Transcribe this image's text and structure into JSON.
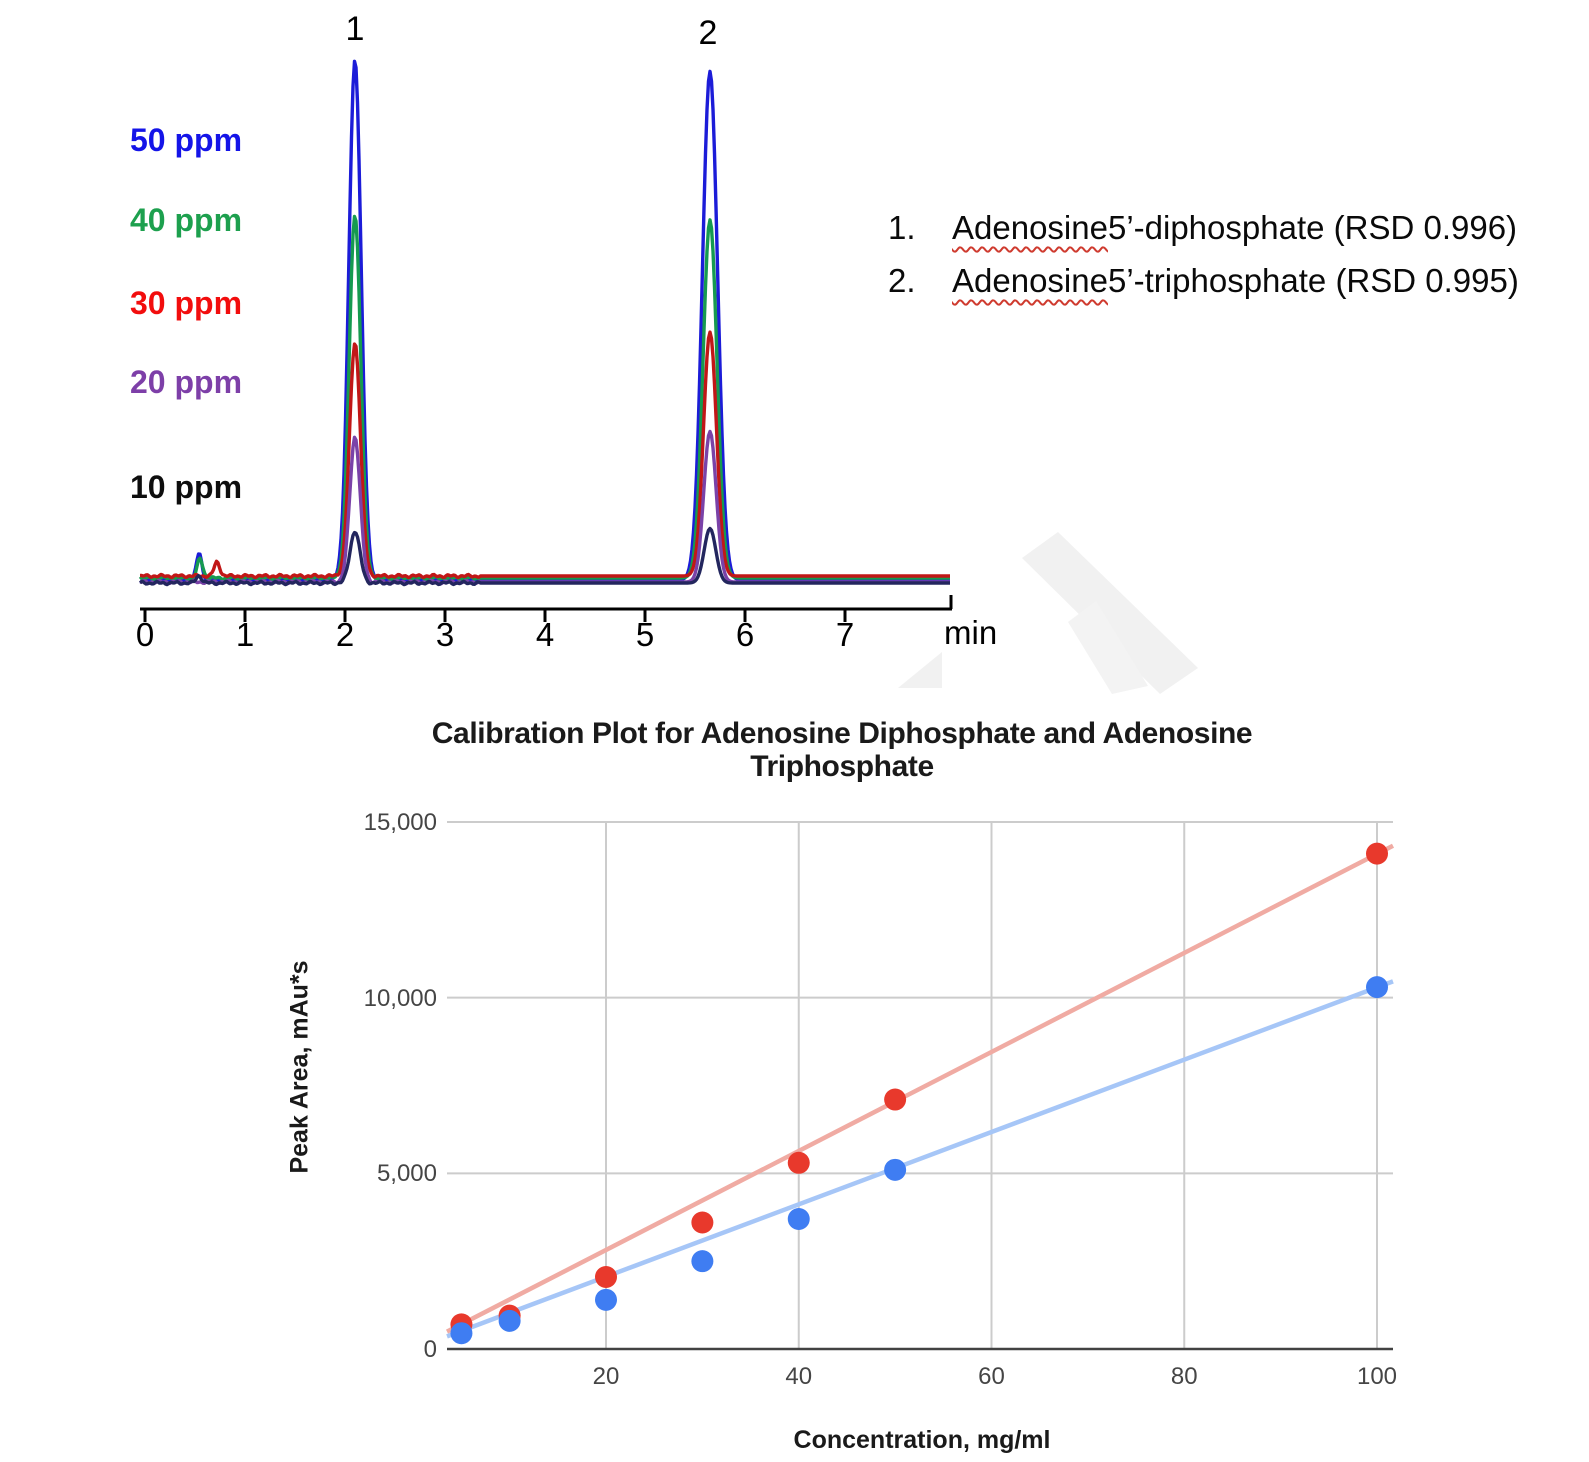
{
  "chromatogram": {
    "concentration_labels": [
      {
        "label": "50 ppm",
        "color": "#1414e8"
      },
      {
        "label": "40 ppm",
        "color": "#1da04e"
      },
      {
        "label": "30 ppm",
        "color": "#f20d0d"
      },
      {
        "label": "20 ppm",
        "color": "#7d3fa8"
      },
      {
        "label": "10 ppm",
        "color": "#0d0d0d"
      }
    ],
    "peak_markers": [
      "1",
      "2"
    ],
    "x_tick_labels": [
      "0",
      "1",
      "2",
      "3",
      "4",
      "5",
      "6",
      "7"
    ],
    "x_unit": "min",
    "legend_items": [
      {
        "number": "1.",
        "word": "Adenosine",
        "rest": " 5’-diphosphate (RSD 0.996)"
      },
      {
        "number": "2.",
        "word": "Adenosine",
        "rest": " 5’-triphosphate (RSD 0.995)"
      }
    ]
  },
  "calibration": {
    "title_lines": [
      "Calibration Plot for Adenosine Diphosphate and Adenosine",
      "Triphosphate"
    ],
    "ylabel": "Peak Area, mAu*s",
    "xlabel": "Concentration, mg/ml",
    "y_tick_labels": [
      {
        "value": 0,
        "label": "0"
      },
      {
        "value": 5000,
        "label": "5,000"
      },
      {
        "value": 10000,
        "label": "10,000"
      },
      {
        "value": 15000,
        "label": "15,000"
      }
    ],
    "x_tick_labels": [
      {
        "value": 20,
        "label": "20"
      },
      {
        "value": 40,
        "label": "40"
      },
      {
        "value": 60,
        "label": "60"
      },
      {
        "value": 80,
        "label": "80"
      },
      {
        "value": 100,
        "label": "100"
      }
    ]
  },
  "chart_data": [
    {
      "type": "line",
      "title": "Overlaid chromatograms at 10-50 ppm",
      "xlabel": "min",
      "x_ticks": [
        0,
        1,
        2,
        3,
        4,
        5,
        6,
        7
      ],
      "peaks": [
        {
          "marker": "1",
          "compound": "Adenosine 5’-diphosphate",
          "rsd": "0.996",
          "retention_min": 2.1
        },
        {
          "marker": "2",
          "compound": "Adenosine 5’-triphosphate",
          "rsd": "0.995",
          "retention_min": 5.6
        }
      ],
      "series": [
        {
          "name": "50 ppm",
          "color": "#1c1cd8",
          "peak1_rel": 1.0,
          "peak2_rel": 0.98
        },
        {
          "name": "40 ppm",
          "color": "#169a50",
          "peak1_rel": 0.7,
          "peak2_rel": 0.69
        },
        {
          "name": "30 ppm",
          "color": "#c11717",
          "peak1_rel": 0.45,
          "peak2_rel": 0.47
        },
        {
          "name": "20 ppm",
          "color": "#7a42a8",
          "peak1_rel": 0.28,
          "peak2_rel": 0.29
        },
        {
          "name": "10 ppm",
          "color": "#23265e",
          "peak1_rel": 0.1,
          "peak2_rel": 0.105
        }
      ],
      "minor_features": [
        {
          "series_index": 0,
          "t": 0.54,
          "rel": 0.05
        },
        {
          "series_index": 1,
          "t": 0.55,
          "rel": 0.037
        },
        {
          "series_index": 2,
          "t": 0.72,
          "rel": 0.027
        },
        {
          "series_index": 4,
          "t": 0.54,
          "rel": 0.014
        }
      ],
      "ylabel": "",
      "grid": false,
      "legend_position": "left"
    },
    {
      "type": "scatter",
      "title": "Calibration Plot for Adenosine Diphosphate and Adenosine Triphosphate",
      "xlabel": "Concentration, mg/ml",
      "ylabel": "Peak Area, mAu*s",
      "x": [
        5,
        10,
        20,
        30,
        40,
        50,
        100
      ],
      "series": [
        {
          "name": "adenosine-triphosphate (red)",
          "color": "#e8392c",
          "trend_color": "#f0aba3",
          "values": [
            700,
            950,
            2050,
            3600,
            5300,
            7100,
            14100
          ],
          "trend_slope": 141
        },
        {
          "name": "adenosine-diphosphate (blue)",
          "color": "#3f7df2",
          "trend_color": "#a6c6f7",
          "values": [
            450,
            800,
            1400,
            2500,
            3700,
            5100,
            10300
          ],
          "trend_slope": 103
        }
      ],
      "xlim": [
        3.5,
        101.6
      ],
      "ylim": [
        0,
        15000
      ],
      "x_ticks": [
        20,
        40,
        60,
        80,
        100
      ],
      "y_ticks": [
        0,
        5000,
        10000,
        15000
      ],
      "grid": true,
      "legend_position": "none"
    }
  ]
}
